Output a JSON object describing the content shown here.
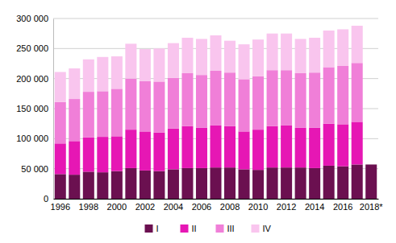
{
  "chart_data": {
    "type": "bar",
    "stacked": true,
    "grid": true,
    "legend": "bottom",
    "categories": [
      "1996",
      null,
      "1998",
      null,
      "2000",
      null,
      "2002",
      null,
      "2004",
      null,
      "2006",
      null,
      "2008",
      null,
      "2010",
      null,
      "2012",
      null,
      "2014",
      null,
      "2016",
      null,
      "2018*"
    ],
    "series": [
      {
        "name": "I",
        "color": "#6b1050",
        "values": [
          41000,
          40000,
          45000,
          44000,
          46000,
          51000,
          47000,
          46000,
          49000,
          51000,
          51000,
          52000,
          52000,
          49000,
          48000,
          52000,
          52000,
          52000,
          51000,
          55000,
          54000,
          57000,
          57000
        ]
      },
      {
        "name": "II",
        "color": "#e617b4",
        "values": [
          51000,
          56000,
          57000,
          59000,
          58000,
          64000,
          65000,
          64000,
          68000,
          70000,
          67000,
          70000,
          69000,
          63000,
          67000,
          69000,
          70000,
          66000,
          67000,
          70000,
          70000,
          71000,
          null
        ]
      },
      {
        "name": "III",
        "color": "#f07fd8",
        "values": [
          69000,
          70000,
          76000,
          76000,
          79000,
          85000,
          84000,
          85000,
          84000,
          88000,
          88000,
          91000,
          89000,
          87000,
          89000,
          93000,
          92000,
          91000,
          92000,
          94000,
          97000,
          98000,
          null
        ]
      },
      {
        "name": "IV",
        "color": "#f9c5ee",
        "values": [
          50000,
          51000,
          54000,
          57000,
          54000,
          58000,
          53000,
          55000,
          58000,
          59000,
          60000,
          59000,
          53000,
          58000,
          61000,
          61000,
          61000,
          57000,
          58000,
          61000,
          61000,
          62000,
          null
        ]
      }
    ],
    "ylim": [
      0,
      300000
    ],
    "yticks": [
      0,
      {
        "value": 50000,
        "label": "50 000"
      },
      {
        "value": 100000,
        "label": "100 000"
      },
      {
        "value": 150000,
        "label": "150 000"
      },
      {
        "value": 200000,
        "label": "200 000"
      },
      {
        "value": 250000,
        "label": "250 000"
      },
      {
        "value": 300000,
        "label": "300 000"
      }
    ]
  }
}
